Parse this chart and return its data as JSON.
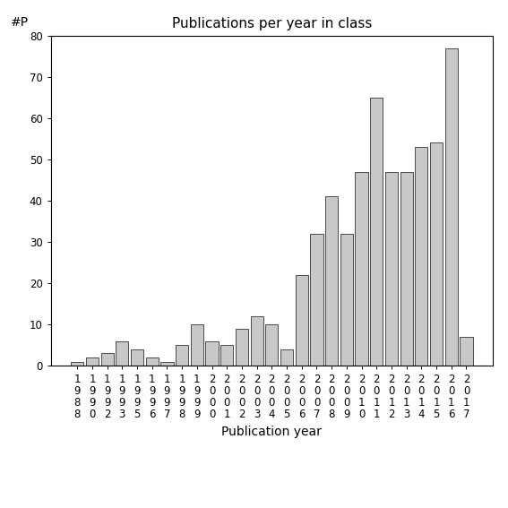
{
  "title": "Publications per year in class",
  "xlabel": "Publication year",
  "ylabel": "#P",
  "bar_color": "#c8c8c8",
  "bar_edgecolor": "#333333",
  "ylim": [
    0,
    80
  ],
  "yticks": [
    0,
    10,
    20,
    30,
    40,
    50,
    60,
    70,
    80
  ],
  "categories": [
    "1988",
    "1990",
    "1992",
    "1993",
    "1995",
    "1996",
    "1997",
    "1998",
    "1999",
    "2000",
    "2001",
    "2002",
    "2003",
    "2004",
    "2005",
    "2006",
    "2007",
    "2008",
    "2009",
    "2010",
    "2011",
    "2012",
    "2013",
    "2014",
    "2015",
    "2016",
    "2017"
  ],
  "values": [
    1,
    2,
    3,
    6,
    4,
    2,
    1,
    5,
    10,
    6,
    5,
    9,
    12,
    10,
    4,
    22,
    32,
    41,
    32,
    47,
    65,
    47,
    47,
    53,
    54,
    77,
    7
  ],
  "background_color": "#ffffff",
  "title_fontsize": 11,
  "axis_fontsize": 10,
  "tick_fontsize": 8.5
}
